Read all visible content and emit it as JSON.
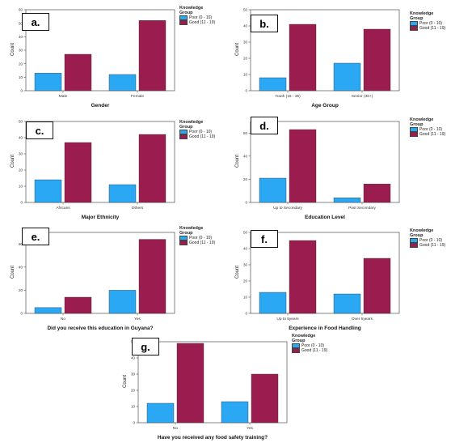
{
  "colors": {
    "poor": "#2BA8F4",
    "good": "#9B1D4F",
    "axis": "#333333"
  },
  "legend": {
    "title_line1": "Knowledge",
    "title_line2": "Group",
    "poor_label": "Poor (0 - 10)",
    "good_label": "Good (11 - 19)"
  },
  "chart_data": [
    {
      "type": "bar",
      "tag": "a.",
      "xlabel": "Gender",
      "ylabel": "Count",
      "categories": [
        "Male",
        "Female"
      ],
      "ylim": [
        0,
        60
      ],
      "ticks": [
        0,
        10,
        20,
        30,
        40,
        50,
        60
      ],
      "series": [
        {
          "name": "Poor (0 - 10)",
          "values": [
            13,
            12
          ]
        },
        {
          "name": "Good (11 - 19)",
          "values": [
            27,
            52
          ]
        }
      ]
    },
    {
      "type": "bar",
      "tag": "b.",
      "xlabel": "Age Group",
      "ylabel": "Count",
      "categories": [
        "Youth (15 - 35)",
        "Senior (36+)"
      ],
      "ylim": [
        0,
        50
      ],
      "ticks": [
        0,
        10,
        20,
        30,
        40,
        50
      ],
      "series": [
        {
          "name": "Poor (0 - 10)",
          "values": [
            8,
            17
          ]
        },
        {
          "name": "Good (11 - 19)",
          "values": [
            41,
            38
          ]
        }
      ]
    },
    {
      "type": "bar",
      "tag": "c.",
      "xlabel": "Major Ethnicity",
      "ylabel": "Count",
      "categories": [
        "Africans",
        "Others"
      ],
      "ylim": [
        0,
        50
      ],
      "ticks": [
        0,
        10,
        20,
        30,
        40,
        50
      ],
      "series": [
        {
          "name": "Poor (0 - 10)",
          "values": [
            14,
            11
          ]
        },
        {
          "name": "Good (11 - 19)",
          "values": [
            37,
            42
          ]
        }
      ]
    },
    {
      "type": "bar",
      "tag": "d.",
      "xlabel": "Education Level",
      "ylabel": "Count",
      "categories": [
        "Up to Secondary",
        "Post Secondary"
      ],
      "ylim": [
        0,
        70
      ],
      "ticks": [
        0,
        20,
        40,
        60
      ],
      "series": [
        {
          "name": "Poor (0 - 10)",
          "values": [
            21,
            4
          ]
        },
        {
          "name": "Good (11 - 19)",
          "values": [
            63,
            16
          ]
        }
      ]
    },
    {
      "type": "bar",
      "tag": "e.",
      "xlabel": "Did you receive this education in Guyana?",
      "ylabel": "Count",
      "categories": [
        "No",
        "Yes"
      ],
      "ylim": [
        0,
        70
      ],
      "ticks": [
        0,
        20,
        40,
        60
      ],
      "series": [
        {
          "name": "Poor (0 - 10)",
          "values": [
            5,
            20
          ]
        },
        {
          "name": "Good (11 - 19)",
          "values": [
            14,
            64
          ]
        }
      ]
    },
    {
      "type": "bar",
      "tag": "f.",
      "xlabel": "Experience in Food Handling",
      "ylabel": "Count",
      "categories": [
        "Up to 5years",
        "Over 5years"
      ],
      "ylim": [
        0,
        50
      ],
      "ticks": [
        0,
        10,
        20,
        30,
        40,
        50
      ],
      "series": [
        {
          "name": "Poor (0 - 10)",
          "values": [
            13,
            12
          ]
        },
        {
          "name": "Good (11 - 19)",
          "values": [
            45,
            34
          ]
        }
      ]
    },
    {
      "type": "bar",
      "tag": "g.",
      "xlabel": "Have you received any food safety training?",
      "ylabel": "Count",
      "categories": [
        "No",
        "Yes"
      ],
      "ylim": [
        0,
        50
      ],
      "ticks": [
        0,
        10,
        20,
        30,
        40,
        50
      ],
      "series": [
        {
          "name": "Poor (0 - 10)",
          "values": [
            12,
            13
          ]
        },
        {
          "name": "Good (11 - 19)",
          "values": [
            49,
            30
          ]
        }
      ]
    }
  ]
}
